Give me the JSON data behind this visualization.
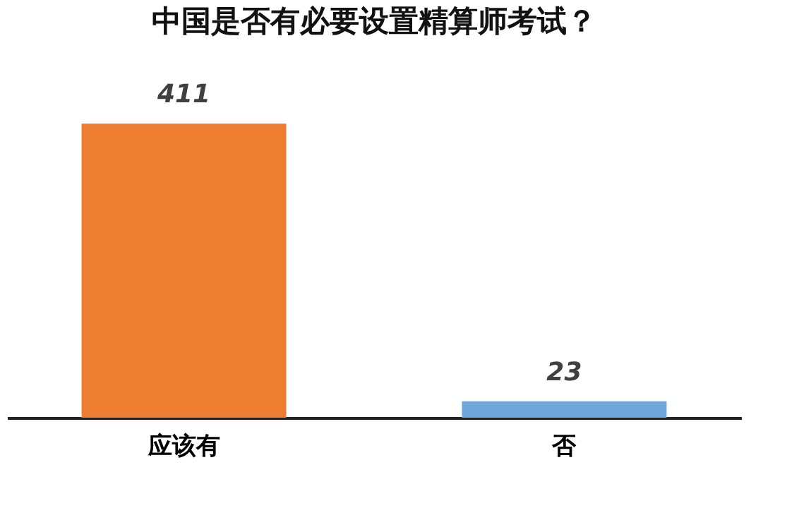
{
  "chart_data": {
    "type": "bar",
    "title": "中国是否有必要设置精算师考试？",
    "categories": [
      "应该有",
      "否"
    ],
    "values": [
      411,
      23
    ],
    "colors": [
      "#ed7d31",
      "#6fa8dc"
    ],
    "data_labels": true
  }
}
